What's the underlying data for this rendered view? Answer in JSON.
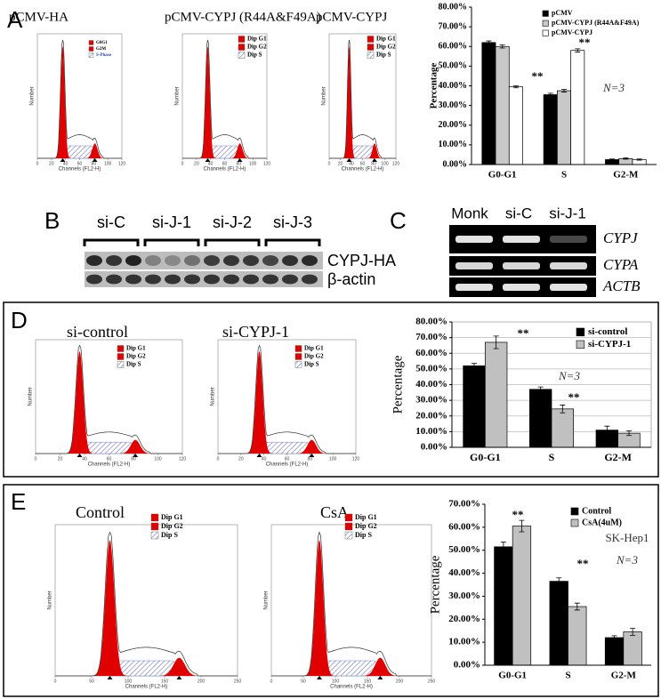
{
  "panels": {
    "A": {
      "label": "A",
      "histograms": [
        {
          "title": "pCMV-HA",
          "legend": [
            "G0G1",
            "G2M",
            "S-Phase"
          ]
        },
        {
          "title": "pCMV-CYPJ (R44A&F49A)",
          "legend": [
            "Dip G1",
            "Dip G2",
            "Dip S"
          ]
        },
        {
          "title": "pCMV-CYPJ",
          "legend": [
            "Dip G1",
            "Dip G2",
            "Dip S"
          ]
        }
      ],
      "x_label": "Channels (FL2-H)",
      "y_label": "Number",
      "xticks": [
        0,
        20,
        40,
        60,
        80,
        100,
        120
      ]
    },
    "B": {
      "label": "B",
      "groups": [
        "si-C",
        "si-J-1",
        "si-J-2",
        "si-J-3"
      ],
      "rows": [
        "CYPJ-HA",
        "β-actin"
      ]
    },
    "C": {
      "label": "C",
      "lanes": [
        "Monk",
        "si-C",
        "si-J-1"
      ],
      "rows": [
        "CYPJ",
        "CYPA",
        "ACTB"
      ]
    },
    "D": {
      "label": "D",
      "histograms": [
        {
          "title": "si-control",
          "legend": [
            "Dip G1",
            "Dip G2",
            "Dip S"
          ]
        },
        {
          "title": "si-CYPJ-1",
          "legend": [
            "Dip G1",
            "Dip G2",
            "Dip S"
          ]
        }
      ],
      "x_label": "Channels (FL2-H)",
      "y_label": "Number",
      "xticks": [
        0,
        20,
        40,
        60,
        80,
        100,
        120
      ]
    },
    "E": {
      "label": "E",
      "histograms": [
        {
          "title": "Control",
          "legend": [
            "Dip G1",
            "Dip G2",
            "Dip S"
          ]
        },
        {
          "title": "CsA",
          "legend": [
            "Dip G1",
            "Dip G2",
            "Dip S"
          ]
        }
      ],
      "x_label": "Channels (FL2-H)",
      "y_label": "Number",
      "xticks": [
        0,
        50,
        100,
        150,
        200,
        250
      ]
    }
  },
  "chart_data": [
    {
      "type": "bar",
      "y_label": "Percentage",
      "categories": [
        "G0-G1",
        "S",
        "G2-M"
      ],
      "series": [
        {
          "name": "pCMV",
          "color": "#000000",
          "values": [
            62,
            35.5,
            2.5
          ],
          "errors": [
            0.8,
            0.7,
            0.3
          ]
        },
        {
          "name": "pCMV-CYPJ (R44A&F49A)",
          "color": "#c8c8c8",
          "values": [
            60,
            37.5,
            3
          ],
          "errors": [
            0.8,
            0.7,
            0.3
          ]
        },
        {
          "name": "pCMV-CYPJ",
          "color": "#ffffff",
          "values": [
            39.5,
            58,
            2.5
          ],
          "errors": [
            0.5,
            0.8,
            0.3
          ]
        }
      ],
      "ylim": [
        0,
        80
      ],
      "yticks": [
        {
          "value": 0,
          "label": "0.00%"
        },
        {
          "value": 10,
          "label": "10.00%"
        },
        {
          "value": 20,
          "label": "20.00%"
        },
        {
          "value": 30,
          "label": "30.00%"
        },
        {
          "value": 40,
          "label": "40.00%"
        },
        {
          "value": 50,
          "label": "50.00%"
        },
        {
          "value": 60,
          "label": "60.00%"
        },
        {
          "value": 70,
          "label": "70.00%"
        },
        {
          "value": 80,
          "label": "80.00%"
        }
      ],
      "annotations": [
        "**",
        "**",
        "N=3"
      ],
      "legend": "upper right",
      "grid": false
    },
    {
      "type": "bar",
      "y_label": "Percentage",
      "categories": [
        "G0-G1",
        "S",
        "G2-M"
      ],
      "series": [
        {
          "name": "si-control",
          "color": "#000000",
          "values": [
            52,
            37,
            11
          ],
          "errors": [
            1.5,
            1.5,
            2.5
          ]
        },
        {
          "name": "si-CYPJ-1",
          "color": "#c0c0c0",
          "values": [
            67,
            24.5,
            9
          ],
          "errors": [
            4,
            2.5,
            1.5
          ]
        }
      ],
      "ylim": [
        0,
        80
      ],
      "yticks": [
        {
          "value": 0,
          "label": "0.00%"
        },
        {
          "value": 10,
          "label": "10.00%"
        },
        {
          "value": 20,
          "label": "20.00%"
        },
        {
          "value": 30,
          "label": "30.00%"
        },
        {
          "value": 40,
          "label": "40.00%"
        },
        {
          "value": 50,
          "label": "50.00%"
        },
        {
          "value": 60,
          "label": "60.00%"
        },
        {
          "value": 70,
          "label": "70.00%"
        },
        {
          "value": 80,
          "label": "80.00%"
        }
      ],
      "annotations": [
        "**",
        "**",
        "N=3"
      ],
      "legend": "upper right",
      "grid": true
    },
    {
      "type": "bar",
      "y_label": "Percentage",
      "categories": [
        "G0-G1",
        "S",
        "G2-M"
      ],
      "series": [
        {
          "name": "Control",
          "color": "#000000",
          "values": [
            51.5,
            36.5,
            12
          ],
          "errors": [
            2,
            1.5,
            0.8
          ]
        },
        {
          "name": "CsA(4uM)",
          "color": "#c0c0c0",
          "values": [
            60.5,
            25.5,
            14.5
          ],
          "errors": [
            2.5,
            1.5,
            1.5
          ]
        }
      ],
      "ylim": [
        0,
        70
      ],
      "yticks": [
        {
          "value": 0,
          "label": "0.00%"
        },
        {
          "value": 10,
          "label": "10.00%"
        },
        {
          "value": 20,
          "label": "20.00%"
        },
        {
          "value": 30,
          "label": "30.00%"
        },
        {
          "value": 40,
          "label": "40.00%"
        },
        {
          "value": 50,
          "label": "50.00%"
        },
        {
          "value": 60,
          "label": "60.00%"
        },
        {
          "value": 70,
          "label": "70.00%"
        }
      ],
      "annotations": [
        "**",
        "**",
        "SK-Hep1",
        "N=3"
      ],
      "legend": "upper right",
      "grid": false
    }
  ]
}
